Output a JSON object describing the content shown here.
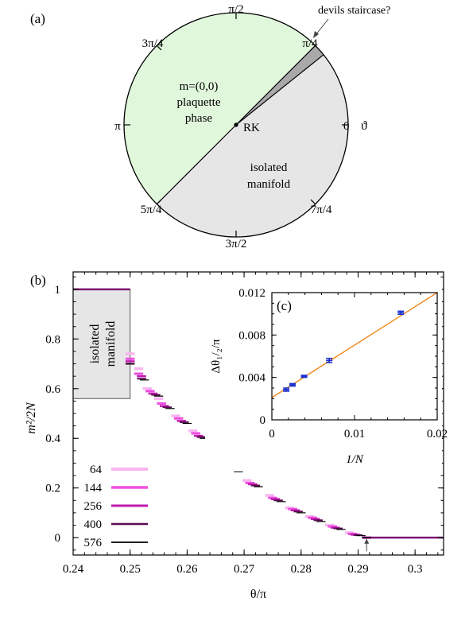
{
  "chart_data": [
    {
      "type": "pie",
      "panel_label": "(a)",
      "angle_ticks": [
        {
          "label": "0",
          "angle": 0
        },
        {
          "label": "π/4",
          "angle": 0.25
        },
        {
          "label": "π/2",
          "angle": 0.5
        },
        {
          "label": "3π/4",
          "angle": 0.75
        },
        {
          "label": "π",
          "angle": 1.0
        },
        {
          "label": "5π/4",
          "angle": 1.25
        },
        {
          "label": "3π/2",
          "angle": 1.5
        },
        {
          "label": "7π/4",
          "angle": 1.75
        }
      ],
      "angle_axis_symbol": "ϑ",
      "center_label": "RK",
      "sectors": [
        {
          "from": 0.25,
          "to": 1.25,
          "color": "#e1f7dc",
          "label_lines": [
            "m=(0,0)",
            "plaquette",
            "phase"
          ]
        },
        {
          "from": 0.215,
          "to": 0.25,
          "color": "#a9a9a9",
          "label_lines": []
        },
        {
          "from": -0.75,
          "to": 0.215,
          "color": "#e6e6e6",
          "label_lines": [
            "isolated",
            "manifold"
          ]
        }
      ],
      "annotation": "devils staircase?"
    },
    {
      "type": "line",
      "panel_label": "(b)",
      "xlabel": "θ/π",
      "ylabel": "m²/2N",
      "xlim": [
        0.24,
        0.305
      ],
      "ylim": [
        -0.07,
        1.07
      ],
      "xticks": [
        "0.24",
        "0.25",
        "0.26",
        "0.27",
        "0.28",
        "0.29",
        "0.3"
      ],
      "yticks": [
        "0",
        "0.2",
        "0.4",
        "0.6",
        "0.8",
        "1"
      ],
      "shaded_region": {
        "label_lines": [
          "isolated",
          "manifold"
        ],
        "x": [
          0.24,
          0.25
        ],
        "y": [
          0.56,
          1.0
        ],
        "color": "#e6e6e6"
      },
      "plateaus": {
        "top": {
          "x": [
            0.24,
            0.25
          ],
          "y": 1.0
        },
        "bottom": {
          "x": [
            0.2915,
            0.305
          ],
          "y": 0.0
        }
      },
      "arrow_x": 0.2915,
      "legend_position": "bottom-left",
      "series": [
        {
          "name": "64",
          "color": "#f7b6f0",
          "points": [
            [
              0.25,
              0.74
            ],
            [
              0.2515,
              0.68
            ],
            [
              0.253,
              0.6
            ],
            [
              0.255,
              0.56
            ],
            [
              0.258,
              0.49
            ],
            [
              0.261,
              0.43
            ],
            [
              0.264,
              0.36
            ],
            [
              0.267,
              0.29
            ],
            [
              0.2705,
              0.23
            ],
            [
              0.2745,
              0.17
            ],
            [
              0.278,
              0.12
            ],
            [
              0.2815,
              0.085
            ],
            [
              0.285,
              0.05
            ],
            [
              0.2885,
              0.02
            ],
            [
              0.2915,
              0.0
            ]
          ]
        },
        {
          "name": "144",
          "color": "#ee4fe0",
          "points": [
            [
              0.25,
              0.72
            ],
            [
              0.2515,
              0.66
            ],
            [
              0.2535,
              0.59
            ],
            [
              0.2555,
              0.54
            ],
            [
              0.2585,
              0.48
            ],
            [
              0.2615,
              0.42
            ],
            [
              0.2645,
              0.35
            ],
            [
              0.2675,
              0.28
            ],
            [
              0.271,
              0.22
            ],
            [
              0.275,
              0.16
            ],
            [
              0.2785,
              0.115
            ],
            [
              0.282,
              0.08
            ],
            [
              0.2855,
              0.045
            ],
            [
              0.289,
              0.015
            ],
            [
              0.2915,
              0.0
            ]
          ]
        },
        {
          "name": "256",
          "color": "#c21ab0",
          "points": [
            [
              0.25,
              0.71
            ],
            [
              0.252,
              0.65
            ],
            [
              0.254,
              0.58
            ],
            [
              0.256,
              0.53
            ],
            [
              0.259,
              0.47
            ],
            [
              0.262,
              0.41
            ],
            [
              0.265,
              0.34
            ],
            [
              0.268,
              0.275
            ],
            [
              0.2715,
              0.215
            ],
            [
              0.2755,
              0.155
            ],
            [
              0.279,
              0.11
            ],
            [
              0.2825,
              0.075
            ],
            [
              0.286,
              0.04
            ],
            [
              0.2895,
              0.012
            ],
            [
              0.2915,
              0.0
            ]
          ]
        },
        {
          "name": "400",
          "color": "#5a0a52",
          "points": [
            [
              0.25,
              0.7
            ],
            [
              0.252,
              0.64
            ],
            [
              0.2545,
              0.575
            ],
            [
              0.2565,
              0.525
            ],
            [
              0.2595,
              0.465
            ],
            [
              0.2625,
              0.405
            ],
            [
              0.2655,
              0.335
            ],
            [
              0.2685,
              0.27
            ],
            [
              0.272,
              0.21
            ],
            [
              0.276,
              0.15
            ],
            [
              0.2795,
              0.105
            ],
            [
              0.283,
              0.07
            ],
            [
              0.2865,
              0.037
            ],
            [
              0.29,
              0.01
            ],
            [
              0.2915,
              0.0
            ]
          ]
        },
        {
          "name": "576",
          "color": "#000000",
          "points": [
            [
              0.25,
              0.7
            ],
            [
              0.2525,
              0.635
            ],
            [
              0.255,
              0.57
            ],
            [
              0.257,
              0.52
            ],
            [
              0.26,
              0.46
            ],
            [
              0.263,
              0.4
            ],
            [
              0.266,
              0.33
            ],
            [
              0.269,
              0.265
            ],
            [
              0.2725,
              0.205
            ],
            [
              0.2765,
              0.145
            ],
            [
              0.28,
              0.1
            ],
            [
              0.2835,
              0.065
            ],
            [
              0.287,
              0.033
            ],
            [
              0.2905,
              0.008
            ],
            [
              0.2915,
              0.0
            ]
          ]
        }
      ]
    },
    {
      "type": "scatter",
      "panel_label": "(c)",
      "xlabel": "1/N",
      "ylabel": "Δθ₁/₂/π",
      "xlim": [
        0,
        0.02
      ],
      "ylim": [
        0,
        0.012
      ],
      "xticks": [
        "0",
        "0.01",
        "0.02"
      ],
      "yticks": [
        "0",
        "0.004",
        "0.008",
        "0.012"
      ],
      "fit_line": {
        "color": "#f08a1c",
        "x": [
          0,
          0.02
        ],
        "y": [
          0.0021,
          0.0122
        ]
      },
      "series": [
        {
          "name": "",
          "color": "#1a2ecf",
          "points": [
            {
              "x": 0.00174,
              "y": 0.00285,
              "err": 0.00015
            },
            {
              "x": 0.0025,
              "y": 0.0033,
              "err": 0.00012
            },
            {
              "x": 0.0039,
              "y": 0.0041,
              "err": 0.0001
            },
            {
              "x": 0.00694,
              "y": 0.0056,
              "err": 0.0002
            },
            {
              "x": 0.0156,
              "y": 0.0101,
              "err": 0.00015
            }
          ]
        }
      ]
    }
  ]
}
